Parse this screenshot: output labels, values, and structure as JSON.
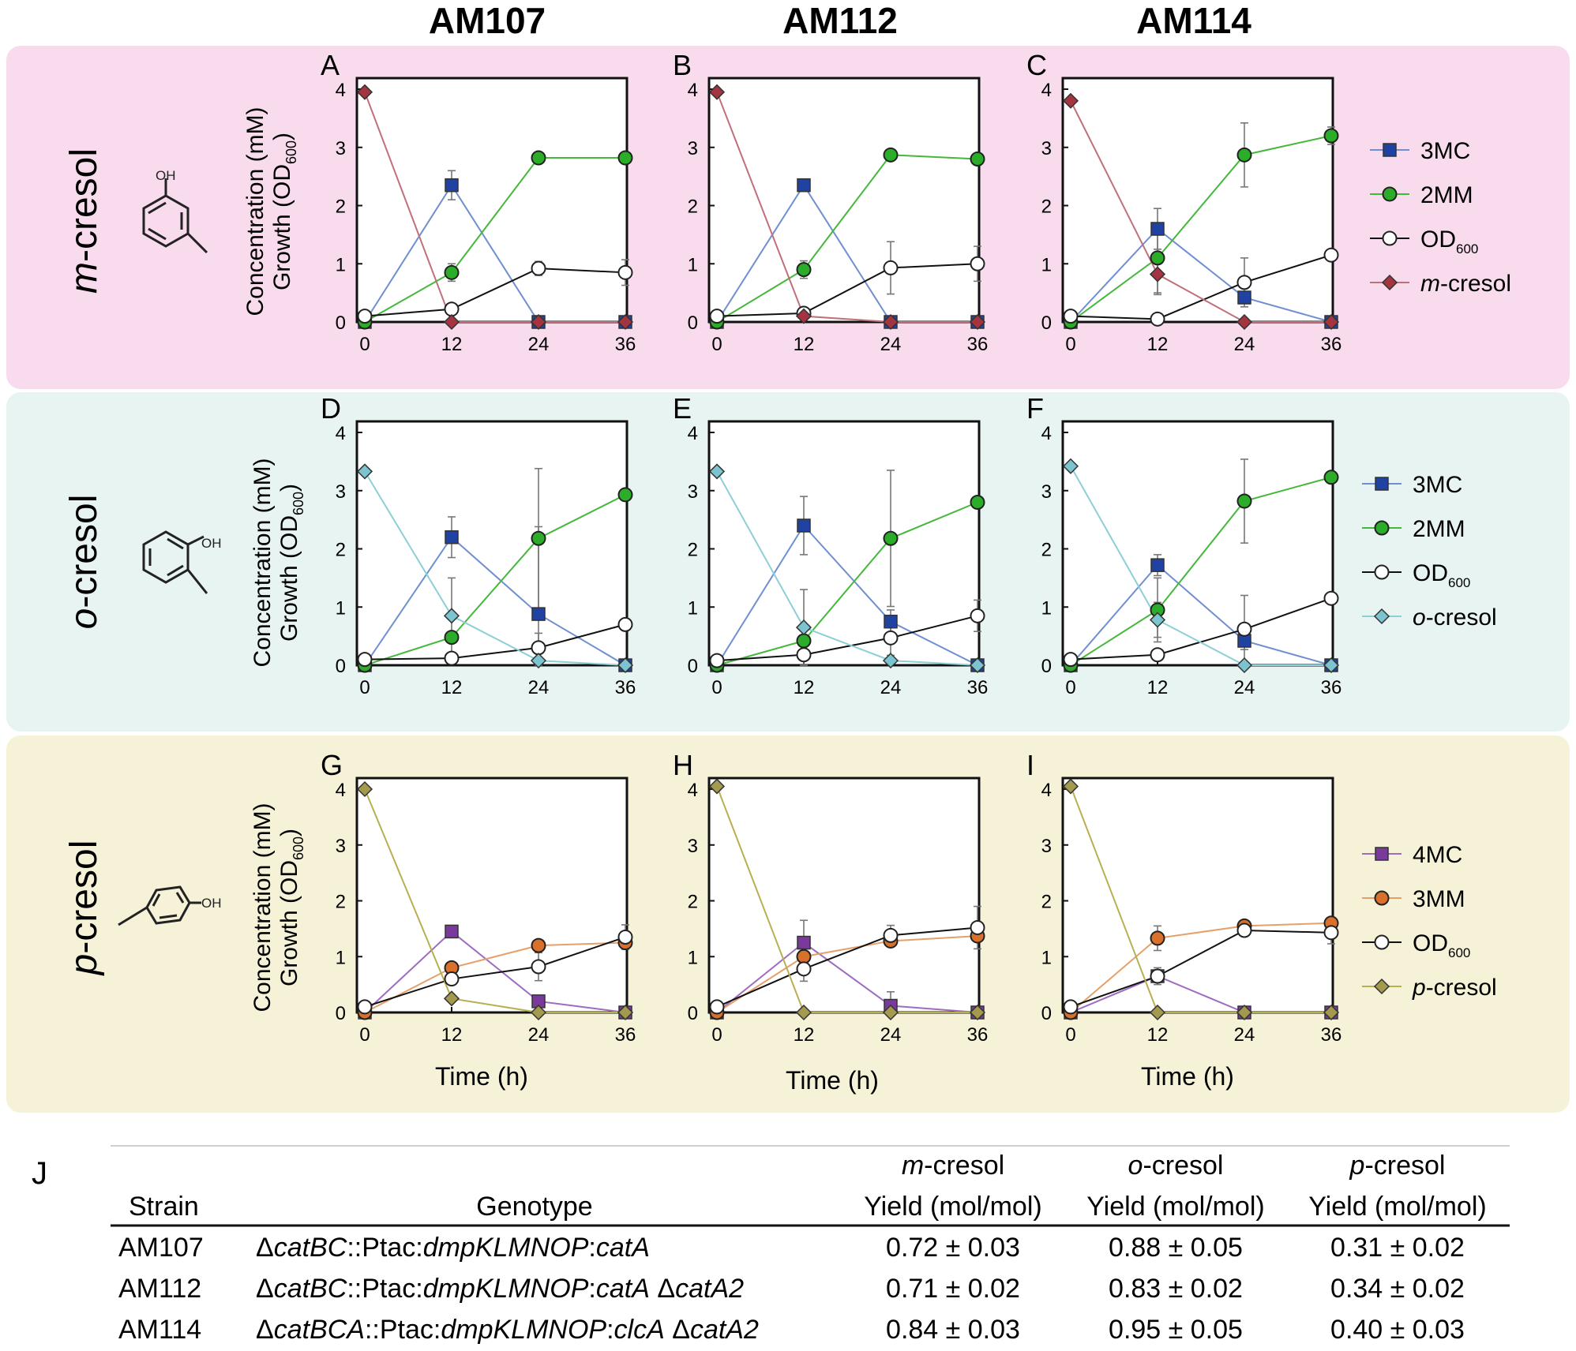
{
  "columns": [
    "AM107",
    "AM112",
    "AM114"
  ],
  "colors": {
    "bg_m": "#f8dcee",
    "bg_o": "#e8f4f1",
    "bg_p": "#f5f2d8",
    "c3MC": "#2043a3",
    "c2MM": "#2cad2a",
    "cMcresol": "#a4343f",
    "cOcresol": "#7cc4cf",
    "c4MC": "#7a3a9c",
    "c3MM": "#d9702c",
    "cPcresol": "#a39a4e",
    "lineMC": "#6f8fd0",
    "lineMM": "#45b83c",
    "lineMcresol": "#c0707a",
    "lineOcresol": "#8ccfd6",
    "line4MC": "#9d6cc0",
    "line3MM": "#e5a06a",
    "linePcresol": "#b8b050"
  },
  "rows": [
    {
      "label_prefix": "m",
      "label_suffix": "-cresol",
      "oh": "OH"
    },
    {
      "label_prefix": "o",
      "label_suffix": "-cresol",
      "oh": "OH"
    },
    {
      "label_prefix": "p",
      "label_suffix": "-cresol",
      "oh": "OH"
    }
  ],
  "axis": {
    "ylabel_line1": "Concentration (mM)",
    "ylabel_line2_pre": "Growth (OD",
    "ylabel_line2_sub": "600",
    "ylabel_line2_post": ")",
    "xlabel": "Time (h)"
  },
  "legends": [
    {
      "items": [
        {
          "label": "3MC",
          "marker": "square",
          "color": "#2043a3"
        },
        {
          "label": "2MM",
          "marker": "circle",
          "color": "#2cad2a"
        },
        {
          "label": "OD",
          "sub": "600",
          "marker": "circle-open",
          "color": "#ffffff"
        },
        {
          "label_it": "m",
          "label": "-cresol",
          "marker": "diamond",
          "color": "#a4343f"
        }
      ]
    },
    {
      "items": [
        {
          "label": "3MC",
          "marker": "square",
          "color": "#2043a3"
        },
        {
          "label": "2MM",
          "marker": "circle",
          "color": "#2cad2a"
        },
        {
          "label": "OD",
          "sub": "600",
          "marker": "circle-open",
          "color": "#ffffff"
        },
        {
          "label_it": "o",
          "label": "-cresol",
          "marker": "diamond",
          "color": "#7cc4cf"
        }
      ]
    },
    {
      "items": [
        {
          "label": "4MC",
          "marker": "square",
          "color": "#7a3a9c"
        },
        {
          "label": "3MM",
          "marker": "circle",
          "color": "#d9702c"
        },
        {
          "label": "OD",
          "sub": "600",
          "marker": "circle-open",
          "color": "#ffffff"
        },
        {
          "label_it": "p",
          "label": "-cresol",
          "marker": "diamond",
          "color": "#a39a4e"
        }
      ]
    }
  ],
  "chart_data": [
    {
      "panel": "A",
      "type": "line",
      "x": [
        0,
        12,
        24,
        36
      ],
      "xticks": [
        0,
        12,
        24,
        36
      ],
      "yticks": [
        0,
        1,
        2,
        3,
        4
      ],
      "ylim": [
        0,
        4
      ],
      "xlim": [
        0,
        36
      ],
      "series": [
        {
          "name": "3MC",
          "marker": "square",
          "values": [
            0,
            2.35,
            0,
            0
          ],
          "err": [
            0,
            0.25,
            0,
            0
          ]
        },
        {
          "name": "2MM",
          "marker": "circle",
          "values": [
            0,
            0.85,
            2.82,
            2.82
          ],
          "err": [
            0,
            0.15,
            0,
            0
          ]
        },
        {
          "name": "OD600",
          "marker": "circle-open",
          "values": [
            0.1,
            0.22,
            0.92,
            0.85
          ],
          "err": [
            0,
            0,
            0.12,
            0.22
          ]
        },
        {
          "name": "m-cresol",
          "marker": "diamond",
          "values": [
            3.95,
            0,
            0,
            0
          ],
          "err": [
            0,
            0,
            0,
            0
          ]
        }
      ]
    },
    {
      "panel": "B",
      "type": "line",
      "x": [
        0,
        12,
        24,
        36
      ],
      "xticks": [
        0,
        12,
        24,
        36
      ],
      "yticks": [
        0,
        1,
        2,
        3,
        4
      ],
      "ylim": [
        0,
        4
      ],
      "xlim": [
        0,
        36
      ],
      "series": [
        {
          "name": "3MC",
          "marker": "square",
          "values": [
            0,
            2.35,
            0,
            0
          ],
          "err": [
            0,
            0.1,
            0,
            0
          ]
        },
        {
          "name": "2MM",
          "marker": "circle",
          "values": [
            0,
            0.9,
            2.87,
            2.8
          ],
          "err": [
            0,
            0.15,
            0,
            0
          ]
        },
        {
          "name": "OD600",
          "marker": "circle-open",
          "values": [
            0.1,
            0.15,
            0.93,
            1.0
          ],
          "err": [
            0,
            0,
            0.45,
            0.3
          ]
        },
        {
          "name": "m-cresol",
          "marker": "diamond",
          "values": [
            3.95,
            0.1,
            0,
            0
          ],
          "err": [
            0,
            0,
            0,
            0
          ]
        }
      ]
    },
    {
      "panel": "C",
      "type": "line",
      "x": [
        0,
        12,
        24,
        36
      ],
      "xticks": [
        0,
        12,
        24,
        36
      ],
      "yticks": [
        0,
        1,
        2,
        3,
        4
      ],
      "ylim": [
        0,
        4
      ],
      "xlim": [
        0,
        36
      ],
      "series": [
        {
          "name": "3MC",
          "marker": "square",
          "values": [
            0,
            1.6,
            0.42,
            0
          ],
          "err": [
            0,
            0.35,
            0.1,
            0
          ]
        },
        {
          "name": "2MM",
          "marker": "circle",
          "values": [
            0,
            1.1,
            2.87,
            3.2
          ],
          "err": [
            0,
            0.6,
            0.55,
            0.15
          ]
        },
        {
          "name": "OD600",
          "marker": "circle-open",
          "values": [
            0.1,
            0.05,
            0.68,
            1.15
          ],
          "err": [
            0,
            0,
            0.42,
            0
          ]
        },
        {
          "name": "m-cresol",
          "marker": "diamond",
          "values": [
            3.8,
            0.82,
            0,
            0
          ],
          "err": [
            0,
            0.35,
            0,
            0
          ]
        }
      ]
    },
    {
      "panel": "D",
      "type": "line",
      "x": [
        0,
        12,
        24,
        36
      ],
      "xticks": [
        0,
        12,
        24,
        36
      ],
      "yticks": [
        0,
        1,
        2,
        3,
        4
      ],
      "ylim": [
        0,
        4
      ],
      "xlim": [
        0,
        36
      ],
      "series": [
        {
          "name": "3MC",
          "marker": "square",
          "values": [
            0,
            2.2,
            0.88,
            0
          ],
          "err": [
            0,
            0.35,
            1.5,
            0
          ]
        },
        {
          "name": "2MM",
          "marker": "circle",
          "values": [
            0,
            0.48,
            2.18,
            2.93
          ],
          "err": [
            0,
            0,
            1.2,
            0.08
          ]
        },
        {
          "name": "OD600",
          "marker": "circle-open",
          "values": [
            0.1,
            0.12,
            0.3,
            0.7
          ],
          "err": [
            0,
            0,
            0.25,
            0
          ]
        },
        {
          "name": "o-cresol",
          "marker": "diamond",
          "values": [
            3.33,
            0.85,
            0.08,
            0
          ],
          "err": [
            0,
            0.65,
            0,
            0
          ]
        }
      ]
    },
    {
      "panel": "E",
      "type": "line",
      "x": [
        0,
        12,
        24,
        36
      ],
      "xticks": [
        0,
        12,
        24,
        36
      ],
      "yticks": [
        0,
        1,
        2,
        3,
        4
      ],
      "ylim": [
        0,
        4
      ],
      "xlim": [
        0,
        36
      ],
      "series": [
        {
          "name": "3MC",
          "marker": "square",
          "values": [
            0,
            2.4,
            0.75,
            0
          ],
          "err": [
            0,
            0.5,
            0.2,
            0
          ]
        },
        {
          "name": "2MM",
          "marker": "circle",
          "values": [
            0,
            0.42,
            2.18,
            2.8
          ],
          "err": [
            0,
            0,
            1.17,
            0
          ]
        },
        {
          "name": "OD600",
          "marker": "circle-open",
          "values": [
            0.08,
            0.18,
            0.47,
            0.85
          ],
          "err": [
            0,
            0,
            0.3,
            0.27
          ]
        },
        {
          "name": "o-cresol",
          "marker": "diamond",
          "values": [
            3.33,
            0.65,
            0.08,
            0
          ],
          "err": [
            0,
            0.65,
            0,
            0
          ]
        }
      ]
    },
    {
      "panel": "F",
      "type": "line",
      "x": [
        0,
        12,
        24,
        36
      ],
      "xticks": [
        0,
        12,
        24,
        36
      ],
      "yticks": [
        0,
        1,
        2,
        3,
        4
      ],
      "ylim": [
        0,
        4
      ],
      "xlim": [
        0,
        36
      ],
      "series": [
        {
          "name": "3MC",
          "marker": "square",
          "values": [
            0,
            1.72,
            0.42,
            0
          ],
          "err": [
            0,
            0.18,
            0.15,
            0
          ]
        },
        {
          "name": "2MM",
          "marker": "circle",
          "values": [
            0,
            0.95,
            2.82,
            3.23
          ],
          "err": [
            0,
            0.55,
            0.72,
            0.08
          ]
        },
        {
          "name": "OD600",
          "marker": "circle-open",
          "values": [
            0.1,
            0.18,
            0.62,
            1.15
          ],
          "err": [
            0,
            0,
            0.58,
            0
          ]
        },
        {
          "name": "o-cresol",
          "marker": "diamond",
          "values": [
            3.42,
            0.78,
            0,
            0
          ],
          "err": [
            0,
            0.3,
            0,
            0
          ]
        }
      ]
    },
    {
      "panel": "G",
      "type": "line",
      "x": [
        0,
        12,
        24,
        36
      ],
      "xticks": [
        0,
        12,
        24,
        36
      ],
      "yticks": [
        0,
        1,
        2,
        3,
        4
      ],
      "ylim": [
        0,
        4
      ],
      "xlim": [
        0,
        36
      ],
      "series": [
        {
          "name": "4MC",
          "marker": "square",
          "values": [
            0,
            1.45,
            0.2,
            0
          ],
          "err": [
            0,
            0,
            0,
            0
          ]
        },
        {
          "name": "3MM",
          "marker": "circle",
          "values": [
            0,
            0.8,
            1.2,
            1.25
          ],
          "err": [
            0,
            0,
            0,
            0
          ]
        },
        {
          "name": "OD600",
          "marker": "circle-open",
          "values": [
            0.1,
            0.6,
            0.82,
            1.35
          ],
          "err": [
            0,
            0,
            0.25,
            0.22
          ]
        },
        {
          "name": "p-cresol",
          "marker": "diamond",
          "values": [
            4.0,
            0.25,
            0,
            0
          ],
          "err": [
            0,
            0,
            0,
            0
          ]
        }
      ]
    },
    {
      "panel": "H",
      "type": "line",
      "x": [
        0,
        12,
        24,
        36
      ],
      "xticks": [
        0,
        12,
        24,
        36
      ],
      "yticks": [
        0,
        1,
        2,
        3,
        4
      ],
      "ylim": [
        0,
        4
      ],
      "xlim": [
        0,
        36
      ],
      "series": [
        {
          "name": "4MC",
          "marker": "square",
          "values": [
            0,
            1.25,
            0.12,
            0
          ],
          "err": [
            0,
            0.4,
            0.25,
            0
          ]
        },
        {
          "name": "3MM",
          "marker": "circle",
          "values": [
            0,
            1.0,
            1.28,
            1.37
          ],
          "err": [
            0,
            0,
            0,
            0
          ]
        },
        {
          "name": "OD600",
          "marker": "circle-open",
          "values": [
            0.1,
            0.78,
            1.38,
            1.52
          ],
          "err": [
            0,
            0.22,
            0.18,
            0.38
          ]
        },
        {
          "name": "p-cresol",
          "marker": "diamond",
          "values": [
            4.05,
            0,
            0,
            0
          ],
          "err": [
            0,
            0,
            0,
            0
          ]
        }
      ]
    },
    {
      "panel": "I",
      "type": "line",
      "x": [
        0,
        12,
        24,
        36
      ],
      "xticks": [
        0,
        12,
        24,
        36
      ],
      "yticks": [
        0,
        1,
        2,
        3,
        4
      ],
      "ylim": [
        0,
        4
      ],
      "xlim": [
        0,
        36
      ],
      "series": [
        {
          "name": "4MC",
          "marker": "square",
          "values": [
            0,
            0.65,
            0,
            0
          ],
          "err": [
            0,
            0,
            0,
            0
          ]
        },
        {
          "name": "3MM",
          "marker": "circle",
          "values": [
            0,
            1.33,
            1.55,
            1.6
          ],
          "err": [
            0,
            0.22,
            0,
            0
          ]
        },
        {
          "name": "OD600",
          "marker": "circle-open",
          "values": [
            0.1,
            0.65,
            1.47,
            1.43
          ],
          "err": [
            0,
            0.15,
            0,
            0.2
          ]
        },
        {
          "name": "p-cresol",
          "marker": "diamond",
          "values": [
            4.05,
            0,
            0,
            0
          ],
          "err": [
            0,
            0,
            0,
            0
          ]
        }
      ]
    }
  ],
  "table": {
    "label": "J",
    "headers": {
      "strain": "Strain",
      "genotype": "Genotype",
      "m_top_it": "m",
      "m_top": "-cresol",
      "o_top_it": "o",
      "o_top": "-cresol",
      "p_top_it": "p",
      "p_top": "-cresol",
      "yield": "Yield (mol/mol)"
    },
    "rows": [
      {
        "strain": "AM107",
        "genotype": [
          {
            "t": "Δ"
          },
          {
            "t": "catBC",
            "i": 1
          },
          {
            "t": "::Ptac:"
          },
          {
            "t": "dmpKLMNOP",
            "i": 1
          },
          {
            "t": ":"
          },
          {
            "t": "catA",
            "i": 1
          }
        ],
        "m": "0.72 ± 0.03",
        "o": "0.88 ± 0.05",
        "p": "0.31 ± 0.02"
      },
      {
        "strain": "AM112",
        "genotype": [
          {
            "t": "Δ"
          },
          {
            "t": "catBC",
            "i": 1
          },
          {
            "t": "::Ptac:"
          },
          {
            "t": "dmpKLMNOP",
            "i": 1
          },
          {
            "t": ":"
          },
          {
            "t": "catA",
            "i": 1
          },
          {
            "t": " Δ"
          },
          {
            "t": "catA2",
            "i": 1
          }
        ],
        "m": "0.71 ± 0.02",
        "o": "0.83 ± 0.02",
        "p": "0.34 ± 0.02"
      },
      {
        "strain": "AM114",
        "genotype": [
          {
            "t": "Δ"
          },
          {
            "t": "catBCA",
            "i": 1
          },
          {
            "t": "::Ptac:"
          },
          {
            "t": "dmpKLMNOP",
            "i": 1
          },
          {
            "t": ":"
          },
          {
            "t": "clcA",
            "i": 1
          },
          {
            "t": " Δ"
          },
          {
            "t": "catA2",
            "i": 1
          }
        ],
        "m": "0.84 ± 0.03",
        "o": "0.95  ± 0.05",
        "p": "0.40 ± 0.03"
      }
    ]
  }
}
